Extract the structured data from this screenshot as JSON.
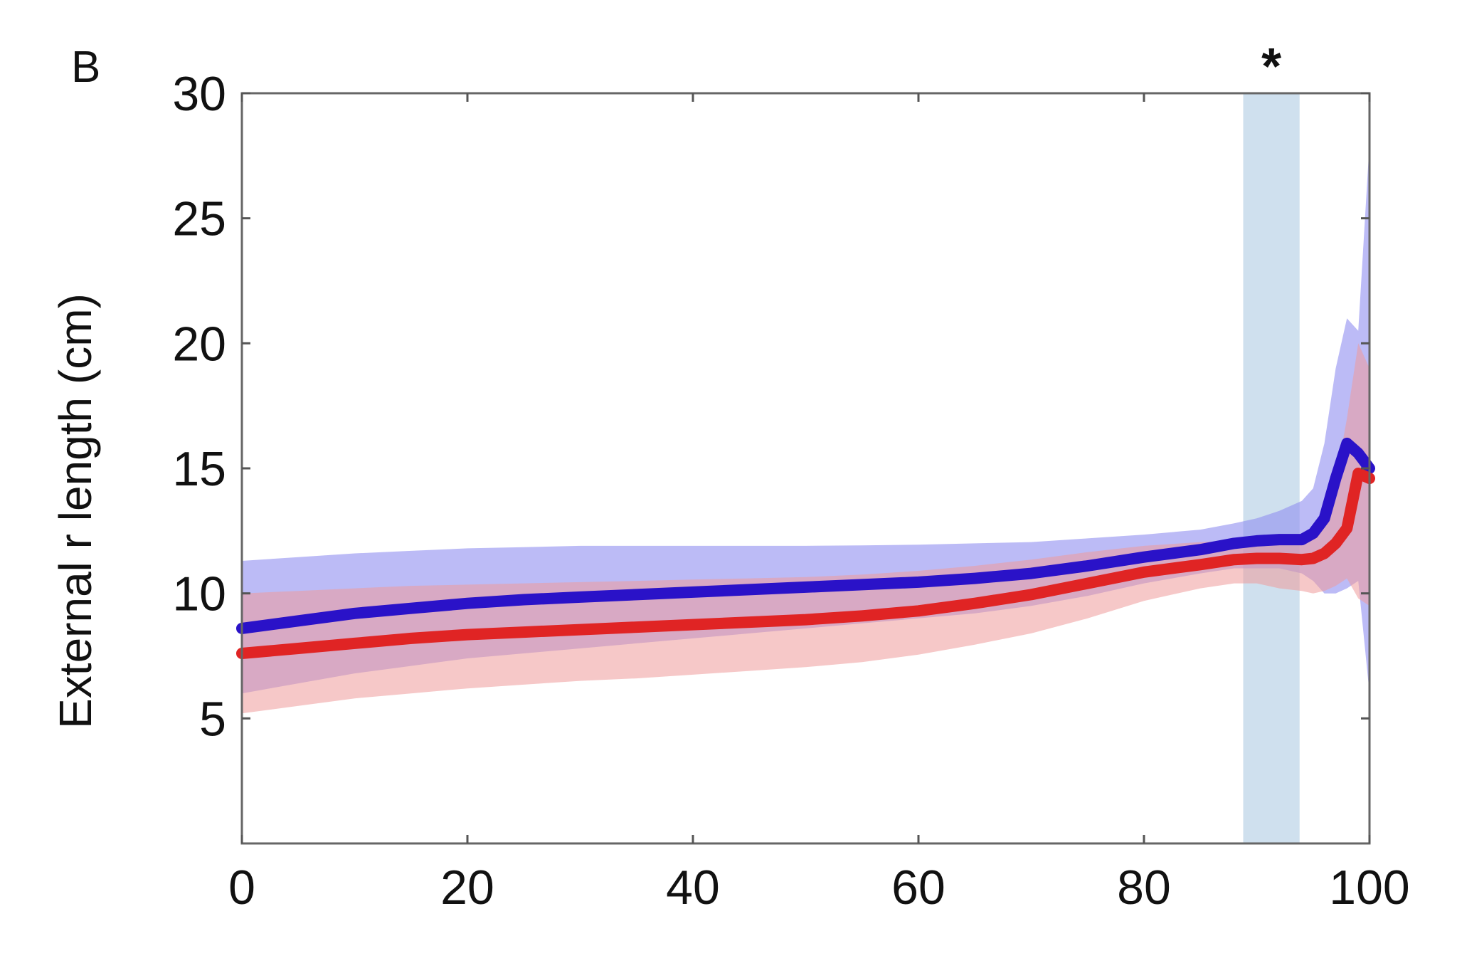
{
  "panel_label": "B",
  "chart_data": {
    "type": "line",
    "title": "",
    "xlabel": "",
    "ylabel": "External r length (cm)",
    "xlim": [
      0,
      100
    ],
    "ylim": [
      0,
      30
    ],
    "xticks": [
      0,
      20,
      40,
      60,
      80,
      100
    ],
    "xtick_labels": [
      "0",
      "20",
      "40",
      "60",
      "80",
      "100"
    ],
    "yticks": [
      5,
      10,
      15,
      20,
      25,
      30
    ],
    "ytick_labels": [
      "5",
      "10",
      "15",
      "20",
      "25",
      "30"
    ],
    "grid": false,
    "legend": "none",
    "annotations": [
      {
        "text": "*",
        "type": "shaded-region",
        "x_range": [
          88.8,
          93.8
        ],
        "color": "#cfe0ee"
      }
    ],
    "series": [
      {
        "color": "#2a12c8",
        "band_color": "#8f8ef0",
        "x": [
          0,
          5,
          10,
          15,
          20,
          25,
          30,
          35,
          40,
          45,
          50,
          55,
          60,
          65,
          70,
          75,
          80,
          85,
          88,
          90,
          92,
          94,
          95,
          96,
          97,
          98,
          99,
          100
        ],
        "y": [
          8.6,
          8.9,
          9.2,
          9.4,
          9.6,
          9.75,
          9.85,
          9.95,
          10.05,
          10.15,
          10.25,
          10.35,
          10.45,
          10.6,
          10.8,
          11.1,
          11.45,
          11.75,
          12.0,
          12.1,
          12.15,
          12.15,
          12.4,
          13.0,
          14.6,
          16.0,
          15.6,
          15.0
        ],
        "upper": [
          11.3,
          11.45,
          11.6,
          11.7,
          11.8,
          11.85,
          11.9,
          11.9,
          11.9,
          11.9,
          11.9,
          11.92,
          11.95,
          12.0,
          12.05,
          12.2,
          12.35,
          12.55,
          12.8,
          13.0,
          13.3,
          13.7,
          14.2,
          16.0,
          19.0,
          21.0,
          20.5,
          28.0
        ],
        "lower": [
          6.0,
          6.4,
          6.8,
          7.1,
          7.4,
          7.6,
          7.8,
          8.0,
          8.2,
          8.4,
          8.6,
          8.8,
          9.0,
          9.2,
          9.5,
          9.9,
          10.4,
          10.8,
          11.0,
          11.0,
          11.0,
          10.8,
          10.5,
          10.0,
          10.0,
          10.2,
          10.5,
          6.0
        ]
      },
      {
        "color": "#e02424",
        "band_color": "#ef9a9a",
        "x": [
          0,
          5,
          10,
          15,
          20,
          25,
          30,
          35,
          40,
          45,
          50,
          55,
          60,
          65,
          70,
          75,
          80,
          85,
          88,
          90,
          92,
          94,
          95,
          96,
          97,
          98,
          99,
          100
        ],
        "y": [
          7.6,
          7.8,
          8.0,
          8.2,
          8.35,
          8.45,
          8.55,
          8.65,
          8.75,
          8.85,
          8.95,
          9.1,
          9.3,
          9.6,
          9.95,
          10.4,
          10.85,
          11.15,
          11.35,
          11.4,
          11.4,
          11.35,
          11.4,
          11.6,
          12.0,
          12.6,
          14.8,
          14.6
        ],
        "upper": [
          10.0,
          10.1,
          10.2,
          10.3,
          10.35,
          10.4,
          10.45,
          10.5,
          10.55,
          10.6,
          10.65,
          10.75,
          10.9,
          11.1,
          11.35,
          11.65,
          11.9,
          12.05,
          12.1,
          12.15,
          12.2,
          12.2,
          12.4,
          13.0,
          14.5,
          17.0,
          20.0,
          19.0
        ],
        "lower": [
          5.2,
          5.5,
          5.8,
          6.0,
          6.2,
          6.35,
          6.5,
          6.6,
          6.75,
          6.9,
          7.05,
          7.25,
          7.55,
          7.95,
          8.4,
          9.0,
          9.7,
          10.2,
          10.4,
          10.4,
          10.2,
          10.1,
          10.0,
          10.1,
          10.3,
          10.6,
          9.8,
          9.5
        ]
      }
    ]
  }
}
